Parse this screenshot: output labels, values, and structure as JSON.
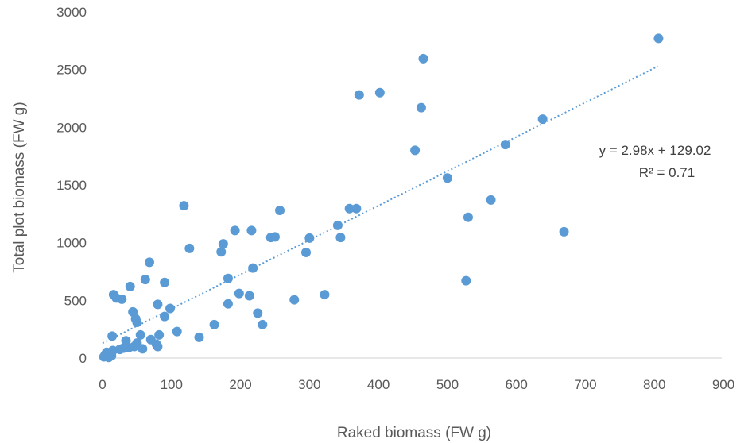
{
  "chart_data": {
    "type": "scatter",
    "xlabel": "Raked biomass (FW g)",
    "ylabel": "Total plot biomass (FW g)",
    "xlim": [
      0,
      900
    ],
    "ylim": [
      0,
      3000
    ],
    "xticks": [
      0,
      100,
      200,
      300,
      400,
      500,
      600,
      700,
      800,
      900
    ],
    "yticks": [
      0,
      500,
      1000,
      1500,
      2000,
      2500,
      3000
    ],
    "grid": false,
    "legend": "none",
    "marker_color": "#5B9BD5",
    "trendline": {
      "type": "linear",
      "slope": 2.98,
      "intercept": 129.02,
      "x_range": [
        0,
        805
      ],
      "style": "dotted",
      "color": "#5B9BD5",
      "equation": "y = 2.98x + 129.02",
      "r_squared": "R² = 0.71"
    },
    "points": [
      [
        2,
        10
      ],
      [
        4,
        30
      ],
      [
        6,
        50
      ],
      [
        7,
        15
      ],
      [
        9,
        5
      ],
      [
        11,
        40
      ],
      [
        13,
        20
      ],
      [
        15,
        65
      ],
      [
        14,
        190
      ],
      [
        16,
        550
      ],
      [
        20,
        520
      ],
      [
        28,
        510
      ],
      [
        25,
        75
      ],
      [
        30,
        85
      ],
      [
        34,
        150
      ],
      [
        38,
        90
      ],
      [
        40,
        620
      ],
      [
        44,
        400
      ],
      [
        48,
        340
      ],
      [
        50,
        310
      ],
      [
        46,
        100
      ],
      [
        50,
        130
      ],
      [
        55,
        200
      ],
      [
        58,
        80
      ],
      [
        62,
        680
      ],
      [
        68,
        830
      ],
      [
        70,
        160
      ],
      [
        78,
        120
      ],
      [
        80,
        465
      ],
      [
        82,
        200
      ],
      [
        80,
        100
      ],
      [
        90,
        655
      ],
      [
        90,
        360
      ],
      [
        98,
        430
      ],
      [
        108,
        230
      ],
      [
        118,
        1320
      ],
      [
        126,
        950
      ],
      [
        140,
        180
      ],
      [
        162,
        290
      ],
      [
        172,
        920
      ],
      [
        175,
        990
      ],
      [
        182,
        690
      ],
      [
        182,
        470
      ],
      [
        192,
        1105
      ],
      [
        198,
        560
      ],
      [
        213,
        540
      ],
      [
        216,
        1105
      ],
      [
        218,
        780
      ],
      [
        225,
        390
      ],
      [
        232,
        290
      ],
      [
        244,
        1045
      ],
      [
        250,
        1050
      ],
      [
        257,
        1280
      ],
      [
        278,
        505
      ],
      [
        295,
        915
      ],
      [
        300,
        1040
      ],
      [
        322,
        550
      ],
      [
        341,
        1150
      ],
      [
        345,
        1045
      ],
      [
        358,
        1295
      ],
      [
        368,
        1295
      ],
      [
        372,
        2280
      ],
      [
        402,
        2300
      ],
      [
        453,
        1800
      ],
      [
        462,
        2170
      ],
      [
        465,
        2595
      ],
      [
        500,
        1560
      ],
      [
        527,
        670
      ],
      [
        530,
        1220
      ],
      [
        563,
        1370
      ],
      [
        584,
        1850
      ],
      [
        638,
        2070
      ],
      [
        669,
        1095
      ],
      [
        806,
        2770
      ]
    ]
  }
}
